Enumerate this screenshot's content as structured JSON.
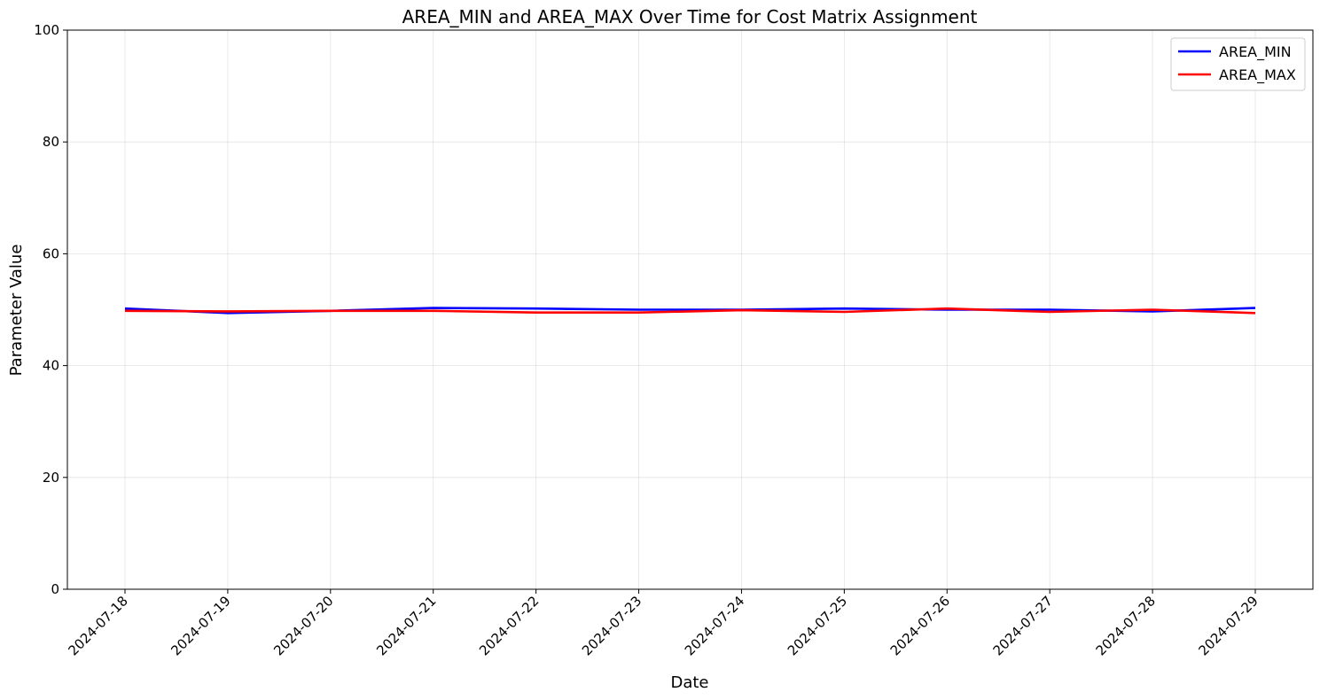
{
  "chart_data": {
    "type": "line",
    "title": "AREA_MIN and AREA_MAX Over Time for Cost Matrix Assignment",
    "xlabel": "Date",
    "ylabel": "Parameter Value",
    "ylim": [
      0,
      100
    ],
    "yticks": [
      0,
      20,
      40,
      60,
      80,
      100
    ],
    "x": [
      "2024-07-18",
      "2024-07-19",
      "2024-07-20",
      "2024-07-21",
      "2024-07-22",
      "2024-07-23",
      "2024-07-24",
      "2024-07-25",
      "2024-07-26",
      "2024-07-27",
      "2024-07-28",
      "2024-07-29"
    ],
    "series": [
      {
        "name": "AREA_MIN",
        "color": "#0000ff",
        "values": [
          50.2,
          49.4,
          49.8,
          50.3,
          50.2,
          50.0,
          50.0,
          50.2,
          50.0,
          50.0,
          49.7,
          50.3
        ]
      },
      {
        "name": "AREA_MAX",
        "color": "#ff0000",
        "values": [
          49.8,
          49.7,
          49.8,
          49.8,
          49.5,
          49.5,
          49.9,
          49.6,
          50.2,
          49.6,
          50.0,
          49.4
        ]
      }
    ],
    "grid": true,
    "legend": "top-right"
  }
}
